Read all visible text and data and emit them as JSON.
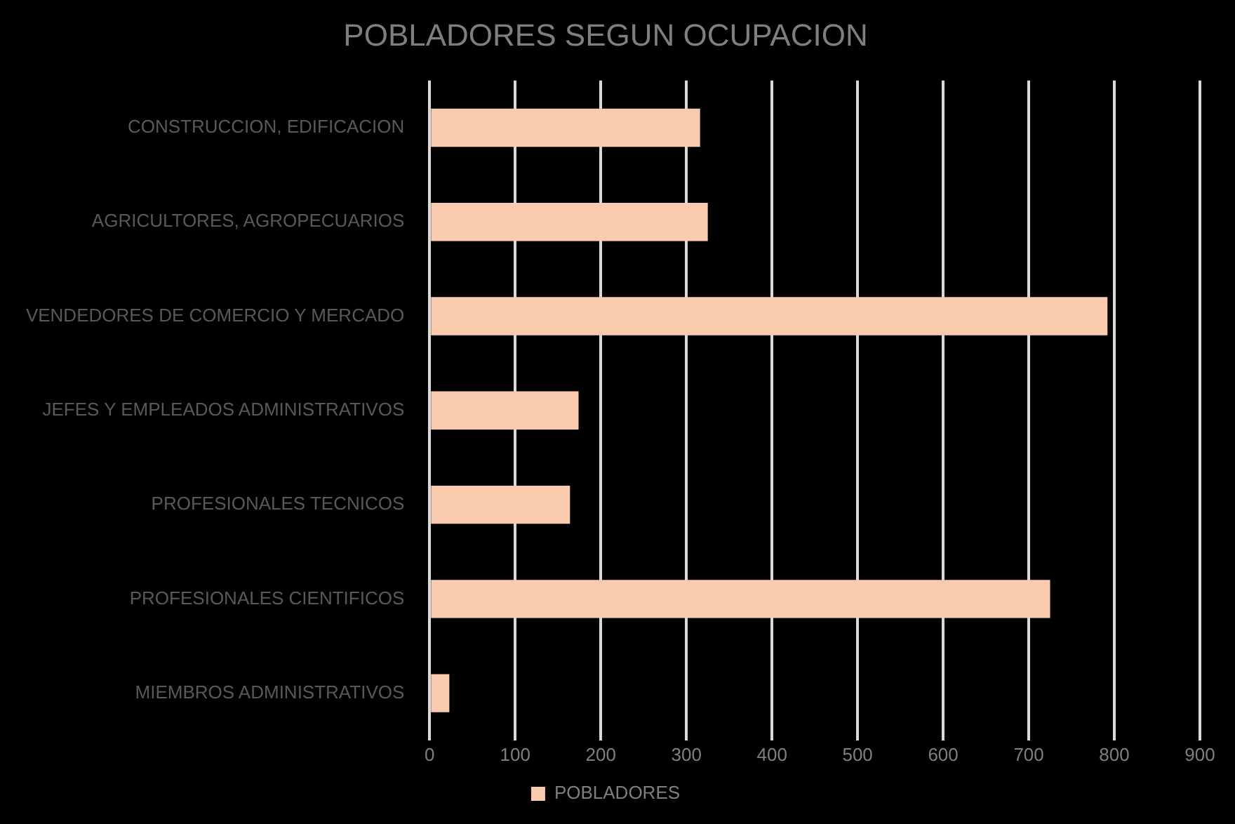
{
  "chart_data": {
    "type": "bar",
    "orientation": "horizontal",
    "title": "POBLADORES SEGUN OCUPACION",
    "categories": [
      "CONSTRUCCION, EDIFICACION",
      "AGRICULTORES, AGROPECUARIOS",
      "VENDEDORES DE COMERCIO Y MERCADO",
      "JEFES Y EMPLEADOS ADMINISTRATIVOS",
      "PROFESIONALES TECNICOS",
      "PROFESIONALES CIENTIFICOS",
      "MIEMBROS ADMINISTRATIVOS"
    ],
    "series": [
      {
        "name": "POBLADORES",
        "color": "#fbcbb0",
        "values": [
          316,
          325,
          792,
          174,
          164,
          725,
          23
        ]
      }
    ],
    "xlim": [
      0,
      900
    ],
    "xticks": [
      0,
      100,
      200,
      300,
      400,
      500,
      600,
      700,
      800,
      900
    ],
    "grid": "x",
    "legend": "bottom"
  }
}
